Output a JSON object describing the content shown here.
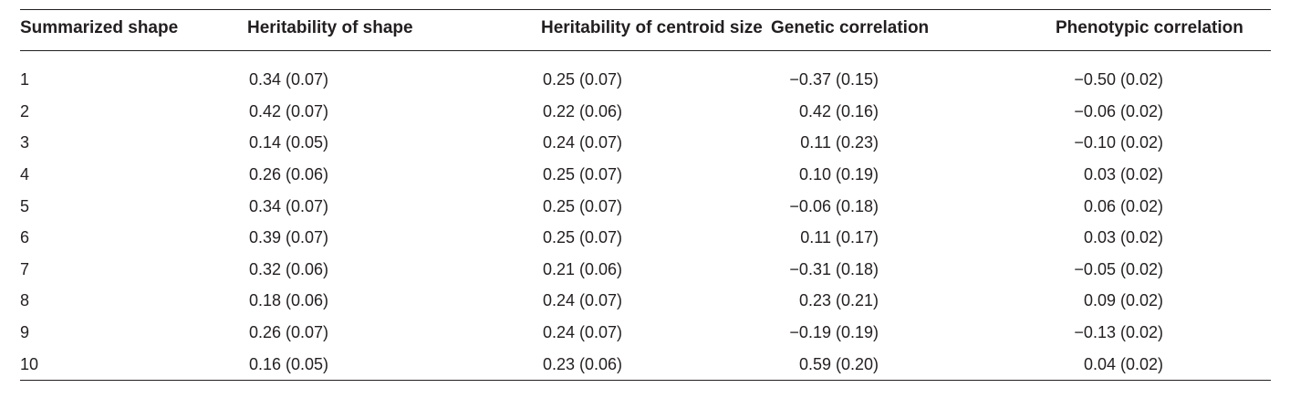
{
  "table": {
    "headers": [
      "Summarized shape",
      "Heritability of shape",
      "Heritability of centroid size",
      "Genetic correlation",
      "Phenotypic correlation"
    ],
    "rows": [
      [
        "1",
        "0.34 (0.07)",
        "0.25 (0.07)",
        "−0.37 (0.15)",
        "−0.50 (0.02)"
      ],
      [
        "2",
        "0.42 (0.07)",
        "0.22 (0.06)",
        "0.42 (0.16)",
        "−0.06 (0.02)"
      ],
      [
        "3",
        "0.14 (0.05)",
        "0.24 (0.07)",
        "0.11 (0.23)",
        "−0.10 (0.02)"
      ],
      [
        "4",
        "0.26 (0.06)",
        "0.25 (0.07)",
        "0.10 (0.19)",
        "0.03 (0.02)"
      ],
      [
        "5",
        "0.34 (0.07)",
        "0.25 (0.07)",
        "−0.06 (0.18)",
        "0.06 (0.02)"
      ],
      [
        "6",
        "0.39 (0.07)",
        "0.25 (0.07)",
        "0.11 (0.17)",
        "0.03 (0.02)"
      ],
      [
        "7",
        "0.32 (0.06)",
        "0.21 (0.06)",
        "−0.31 (0.18)",
        "−0.05 (0.02)"
      ],
      [
        "8",
        "0.18 (0.06)",
        "0.24 (0.07)",
        "0.23 (0.21)",
        "0.09 (0.02)"
      ],
      [
        "9",
        "0.26 (0.07)",
        "0.24 (0.07)",
        "−0.19 (0.19)",
        "−0.13 (0.02)"
      ],
      [
        "10",
        "0.16 (0.05)",
        "0.23 (0.06)",
        "0.59 (0.20)",
        "0.04 (0.02)"
      ]
    ]
  }
}
